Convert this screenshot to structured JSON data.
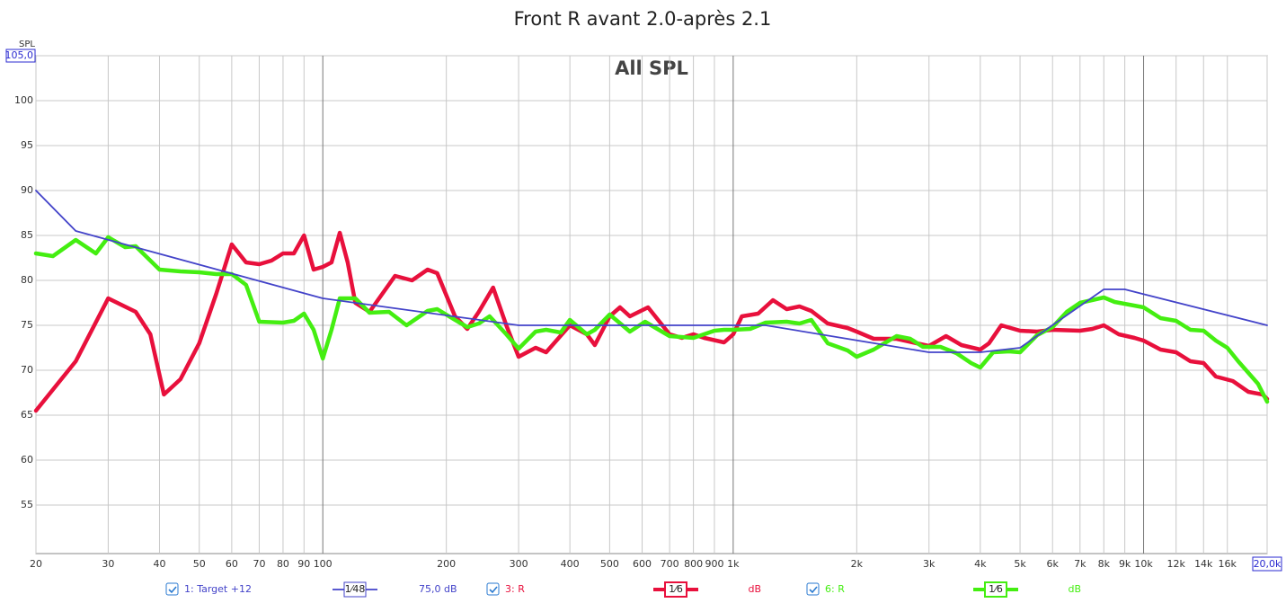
{
  "chart_data": {
    "type": "line",
    "title": "Front R avant 2.0-après 2.1",
    "annotation": "All SPL",
    "y_label": "SPL",
    "xscale": "log",
    "grid": true,
    "xlim": [
      20,
      20000
    ],
    "ylim": [
      49.6,
      105
    ],
    "yticks": [
      55,
      60,
      65,
      70,
      75,
      80,
      85,
      90,
      95,
      100,
      {
        "value": 105,
        "label": "105,0"
      }
    ],
    "xticks": [
      20,
      30,
      40,
      50,
      60,
      70,
      80,
      90,
      100,
      200,
      300,
      400,
      500,
      600,
      700,
      800,
      900,
      {
        "value": 1000,
        "label": "1k"
      },
      {
        "value": 2000,
        "label": "2k"
      },
      {
        "value": 3000,
        "label": "3k"
      },
      {
        "value": 4000,
        "label": "4k"
      },
      {
        "value": 5000,
        "label": "5k"
      },
      {
        "value": 6000,
        "label": "6k"
      },
      {
        "value": 7000,
        "label": "7k"
      },
      {
        "value": 8000,
        "label": "8k"
      },
      {
        "value": 9000,
        "label": "9k"
      },
      {
        "value": 10000,
        "label": "10k"
      },
      {
        "value": 12000,
        "label": "12k"
      },
      {
        "value": 14000,
        "label": "14k"
      },
      {
        "value": 16000,
        "label": "16k"
      },
      {
        "value": 20000,
        "label": "20,0k"
      }
    ],
    "series": [
      {
        "name": "1: Target +12",
        "color": "#4343c9",
        "smoothing": "1⁄48",
        "offset": "75,0 dB",
        "x": [
          20,
          25,
          100,
          300,
          1200,
          3000,
          4000,
          5000,
          8000,
          9000,
          20000
        ],
        "values": [
          90,
          85.5,
          78,
          75,
          75,
          72,
          72,
          72.5,
          79,
          79,
          75
        ]
      },
      {
        "name": "3: R",
        "color": "#e8103c",
        "smoothing": "1⁄6",
        "offset": "dB",
        "x": [
          20,
          25,
          30,
          35,
          38,
          41,
          45,
          50,
          55,
          60,
          65,
          70,
          75,
          80,
          85,
          90,
          95,
          100,
          105,
          110,
          115,
          120,
          130,
          150,
          165,
          180,
          190,
          210,
          225,
          240,
          260,
          280,
          300,
          330,
          350,
          400,
          440,
          460,
          500,
          530,
          560,
          620,
          700,
          750,
          800,
          850,
          950,
          1000,
          1050,
          1150,
          1250,
          1350,
          1450,
          1550,
          1700,
          1900,
          2000,
          2200,
          2500,
          2800,
          3000,
          3300,
          3600,
          4000,
          4200,
          4500,
          5000,
          5500,
          6000,
          7000,
          7500,
          8000,
          8700,
          9500,
          10000,
          11000,
          12000,
          13000,
          14000,
          15000,
          16500,
          18000,
          19500,
          20000
        ],
        "values": [
          65.5,
          71,
          78,
          76.5,
          74,
          67.3,
          69,
          73,
          78.5,
          84,
          82,
          81.8,
          82.2,
          83,
          83,
          85,
          81.2,
          81.5,
          82,
          85.3,
          82,
          77.5,
          76.5,
          80.5,
          80,
          81.2,
          80.8,
          76,
          74.6,
          76.5,
          79.2,
          75,
          71.5,
          72.5,
          72,
          75,
          74,
          72.8,
          76,
          77,
          76,
          77,
          74,
          73.6,
          74,
          73.6,
          73.1,
          74,
          76,
          76.3,
          77.8,
          76.8,
          77.1,
          76.6,
          75.2,
          74.7,
          74.3,
          73.5,
          73.5,
          73,
          72.7,
          73.8,
          72.8,
          72.3,
          73,
          75,
          74.4,
          74.3,
          74.5,
          74.4,
          74.6,
          75,
          74,
          73.6,
          73.3,
          72.3,
          72,
          71,
          70.8,
          69.3,
          68.8,
          67.6,
          67.3,
          66.8
        ]
      },
      {
        "name": "6: R",
        "color": "#44ee11",
        "smoothing": "1⁄6",
        "offset": "dB",
        "x": [
          20,
          22,
          25,
          28,
          30,
          33,
          35,
          40,
          45,
          50,
          55,
          60,
          65,
          70,
          80,
          85,
          90,
          95,
          100,
          105,
          110,
          120,
          130,
          145,
          160,
          180,
          190,
          210,
          225,
          240,
          255,
          280,
          300,
          330,
          350,
          380,
          400,
          440,
          460,
          500,
          560,
          610,
          700,
          800,
          900,
          950,
          1000,
          1100,
          1200,
          1350,
          1450,
          1550,
          1700,
          1900,
          2000,
          2200,
          2500,
          2700,
          2900,
          3200,
          3500,
          3800,
          4000,
          4300,
          4700,
          5000,
          5500,
          6000,
          6500,
          7000,
          8000,
          8500,
          10000,
          11000,
          12000,
          13000,
          14000,
          15000,
          16000,
          17000,
          19000,
          20000
        ],
        "values": [
          83,
          82.7,
          84.5,
          83,
          84.8,
          83.7,
          83.8,
          81.2,
          81,
          80.9,
          80.7,
          80.7,
          79.5,
          75.4,
          75.3,
          75.5,
          76.3,
          74.5,
          71.3,
          74.5,
          78,
          78,
          76.4,
          76.5,
          75,
          76.6,
          76.8,
          75.6,
          74.8,
          75.2,
          76,
          74,
          72.4,
          74.3,
          74.5,
          74.2,
          75.6,
          74,
          74.5,
          76.2,
          74.3,
          75.4,
          73.8,
          73.6,
          74.4,
          74.5,
          74.5,
          74.6,
          75.3,
          75.4,
          75.2,
          75.6,
          73,
          72.2,
          71.5,
          72.3,
          73.8,
          73.5,
          72.6,
          72.6,
          71.9,
          70.8,
          70.3,
          72,
          72.1,
          72,
          73.9,
          74.8,
          76.5,
          77.5,
          78.1,
          77.6,
          77,
          75.8,
          75.5,
          74.5,
          74.4,
          73.3,
          72.5,
          71,
          68.5,
          66.5
        ]
      }
    ]
  }
}
